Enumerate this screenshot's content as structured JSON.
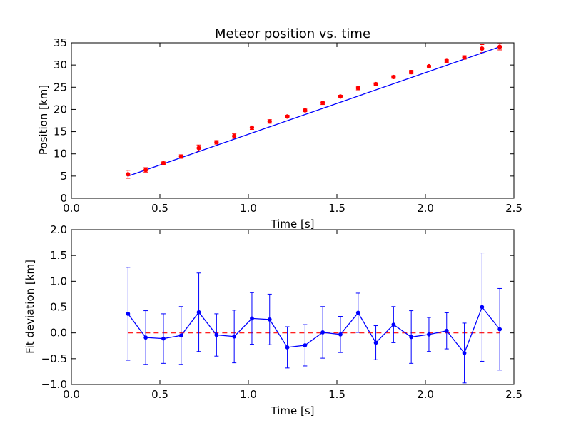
{
  "colors": {
    "data_marker": "#ff0000",
    "error_bar_top": "#ff0000",
    "fit_line": "#0000ff",
    "deviation_series": "#0000ff",
    "zero_line": "#ff0000"
  },
  "chart_data": [
    {
      "type": "scatter",
      "title": "Meteor position vs. time",
      "xlabel": "Time [s]",
      "ylabel": "Position [km]",
      "xlim": [
        0.0,
        2.5
      ],
      "ylim": [
        0,
        35
      ],
      "xticks": [
        "0.0",
        "0.5",
        "1.0",
        "1.5",
        "2.0",
        "2.5"
      ],
      "yticks": [
        "0",
        "5",
        "10",
        "15",
        "20",
        "25",
        "30",
        "35"
      ],
      "grid": false,
      "series": [
        {
          "kind": "errorbar-points",
          "x": [
            0.32,
            0.42,
            0.52,
            0.62,
            0.72,
            0.82,
            0.92,
            1.02,
            1.12,
            1.22,
            1.32,
            1.42,
            1.52,
            1.62,
            1.72,
            1.82,
            1.92,
            2.02,
            2.12,
            2.22,
            2.32,
            2.42
          ],
          "y": [
            5.4,
            6.4,
            7.9,
            9.4,
            11.3,
            12.6,
            14.0,
            15.9,
            17.3,
            18.4,
            19.8,
            21.5,
            22.9,
            24.8,
            25.7,
            27.3,
            28.4,
            29.7,
            30.9,
            31.7,
            33.7,
            34.1
          ],
          "yerr": [
            0.9,
            0.5,
            0.3,
            0.4,
            0.7,
            0.4,
            0.5,
            0.4,
            0.4,
            0.3,
            0.3,
            0.4,
            0.3,
            0.4,
            0.3,
            0.3,
            0.4,
            0.2,
            0.3,
            0.4,
            0.9,
            0.7
          ]
        },
        {
          "kind": "fit-line",
          "x": [
            0.32,
            2.42
          ],
          "y": [
            5.0,
            34.1
          ]
        }
      ]
    },
    {
      "type": "line",
      "title": "",
      "xlabel": "Time [s]",
      "ylabel": "Fit deviation [km]",
      "xlim": [
        0.0,
        2.5
      ],
      "ylim": [
        -1.0,
        2.0
      ],
      "xticks": [
        "0.0",
        "0.5",
        "1.0",
        "1.5",
        "2.0",
        "2.5"
      ],
      "yticks": [
        "−1.0",
        "−0.5",
        "0.0",
        "0.5",
        "1.0",
        "1.5",
        "2.0"
      ],
      "grid": false,
      "series": [
        {
          "kind": "errorbar-line",
          "x": [
            0.32,
            0.42,
            0.52,
            0.62,
            0.72,
            0.82,
            0.92,
            1.02,
            1.12,
            1.22,
            1.32,
            1.42,
            1.52,
            1.62,
            1.72,
            1.82,
            1.92,
            2.02,
            2.12,
            2.22,
            2.32,
            2.42
          ],
          "y": [
            0.37,
            -0.09,
            -0.11,
            -0.05,
            0.4,
            -0.04,
            -0.07,
            0.28,
            0.26,
            -0.28,
            -0.24,
            0.01,
            -0.03,
            0.39,
            -0.19,
            0.16,
            -0.08,
            -0.03,
            0.04,
            -0.39,
            0.5,
            0.07
          ],
          "yerr": [
            0.9,
            0.52,
            0.48,
            0.56,
            0.76,
            0.41,
            0.51,
            0.5,
            0.49,
            0.4,
            0.4,
            0.5,
            0.35,
            0.38,
            0.33,
            0.35,
            0.51,
            0.33,
            0.35,
            0.58,
            1.05,
            0.79
          ]
        },
        {
          "kind": "zero-reference",
          "x": [
            0.32,
            2.42
          ],
          "y": [
            0.0,
            0.0
          ],
          "style": "dashed"
        }
      ]
    }
  ]
}
